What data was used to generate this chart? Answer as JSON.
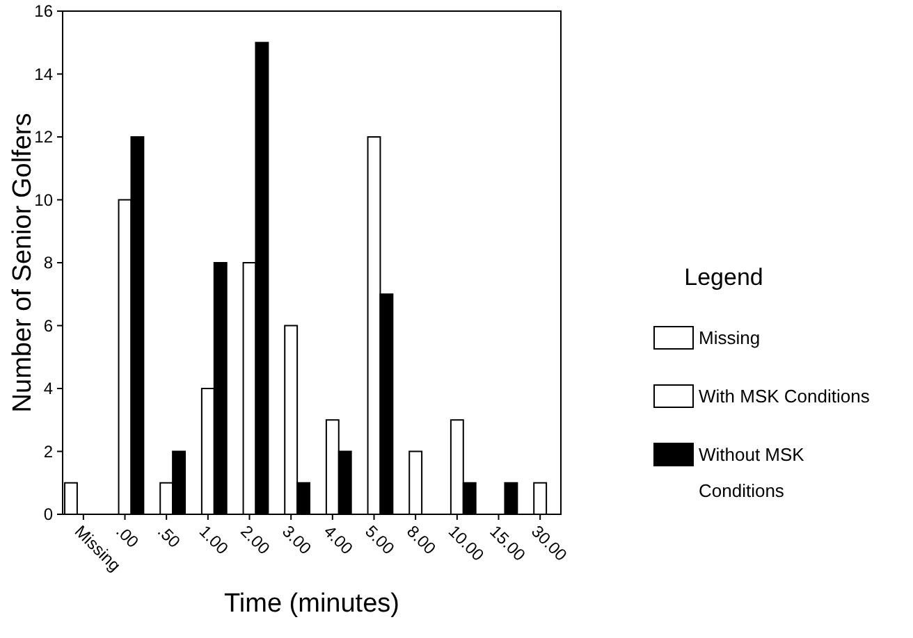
{
  "chart_data": {
    "type": "bar",
    "xlabel": "Time (minutes)",
    "ylabel": "Number of Senior Golfers",
    "legend_title": "Legend",
    "legend": "right",
    "categories": [
      "Missing",
      ".00",
      ".50",
      "1.00",
      "2.00",
      "3.00",
      "4.00",
      "5.00",
      "8.00",
      "10.00",
      "15.00",
      "30.00"
    ],
    "series": [
      {
        "name": "Missing",
        "color": "#ffffff",
        "values": [
          1,
          null,
          null,
          null,
          null,
          null,
          null,
          null,
          null,
          null,
          null,
          null
        ]
      },
      {
        "name": "With MSK Conditions",
        "color": "#ffffff",
        "values": [
          null,
          10,
          1,
          4,
          8,
          6,
          3,
          12,
          2,
          3,
          null,
          1
        ]
      },
      {
        "name": "Without MSK Conditions",
        "color": "#000000",
        "values": [
          null,
          12,
          2,
          8,
          15,
          1,
          2,
          7,
          null,
          1,
          1,
          null
        ]
      }
    ],
    "ylim": [
      0,
      16
    ],
    "yticks": [
      0,
      2,
      4,
      6,
      8,
      10,
      12,
      14,
      16
    ]
  }
}
